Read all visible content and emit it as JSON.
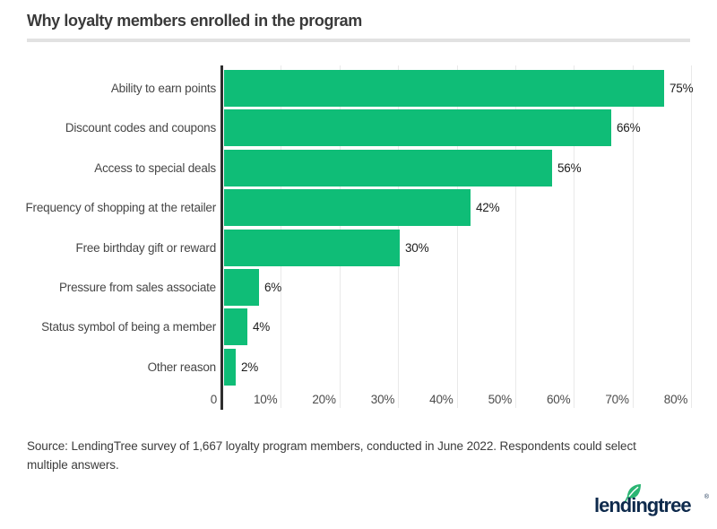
{
  "title": "Why loyalty members enrolled in the program",
  "chart_data": {
    "type": "bar",
    "orientation": "horizontal",
    "title": "Why loyalty members enrolled in the program",
    "categories": [
      "Ability to earn points",
      "Discount codes and coupons",
      "Access to special deals",
      "Frequency of shopping at the retailer",
      "Free birthday gift or reward",
      "Pressure from sales associate",
      "Status symbol of being a member",
      "Other reason"
    ],
    "values": [
      75,
      66,
      56,
      42,
      30,
      6,
      4,
      2
    ],
    "value_labels": [
      "75%",
      "66%",
      "56%",
      "42%",
      "30%",
      "6%",
      "4%",
      "2%"
    ],
    "x_ticks": [
      {
        "value": 0,
        "label": "0"
      },
      {
        "value": 10,
        "label": "10%"
      },
      {
        "value": 20,
        "label": "20%"
      },
      {
        "value": 30,
        "label": "30%"
      },
      {
        "value": 40,
        "label": "40%"
      },
      {
        "value": 50,
        "label": "50%"
      },
      {
        "value": 60,
        "label": "60%"
      },
      {
        "value": 70,
        "label": "70%"
      },
      {
        "value": 80,
        "label": "80%"
      }
    ],
    "xlim": [
      0,
      80
    ],
    "xlabel": "",
    "ylabel": "",
    "grid": true,
    "legend": false,
    "bar_color": "#0fbd77",
    "axis_color": "#2e2e2e",
    "gridline_color": "#e9e9e9"
  },
  "source_note": "Source: LendingTree survey of 1,667 loyalty program members, conducted in June 2022. Respondents could select multiple answers.",
  "logo": {
    "text": "lendingtree",
    "registered_mark": "®",
    "text_color": "#0e2a4c",
    "leaf_color": "#2bb573"
  }
}
